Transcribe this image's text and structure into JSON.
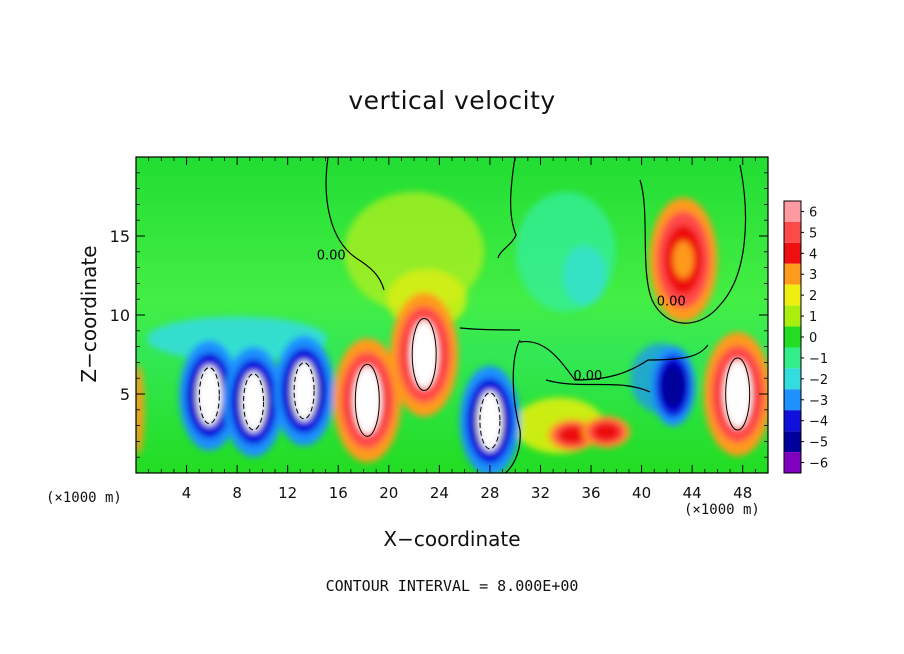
{
  "chart_data": {
    "type": "heatmap",
    "title": "vertical velocity",
    "xlabel": "X−coordinate",
    "ylabel": "Z−coordinate",
    "x_unit": "(×1000 m)",
    "x_unit_right": "(×1000 m)",
    "xlim": [
      0,
      50
    ],
    "ylim": [
      0,
      20
    ],
    "x_ticks": [
      4,
      8,
      12,
      16,
      20,
      24,
      28,
      32,
      36,
      40,
      44,
      48
    ],
    "y_ticks": [
      5,
      10,
      15
    ],
    "colorbar": {
      "levels": [
        6,
        5,
        4,
        3,
        2,
        1,
        0,
        -1,
        -2,
        -3,
        -4,
        -5,
        -6
      ],
      "colors": [
        "#ff9aa0",
        "#ff4a4a",
        "#ee1010",
        "#ff9a1a",
        "#eeee10",
        "#aaee10",
        "#22dd22",
        "#33ee88",
        "#33dddd",
        "#1e90ff",
        "#1010dd",
        "#00009a",
        "#8000c0"
      ]
    },
    "contour_labels": [
      {
        "text": "0.00",
        "x": 14.3,
        "y": 13.5
      },
      {
        "text": "0.00",
        "x": 34.6,
        "y": 5.9
      },
      {
        "text": "0.00",
        "x": 41.2,
        "y": 10.6
      }
    ],
    "features": [
      {
        "kind": "downdraft",
        "x": 5.8,
        "z": 4.9,
        "level": -6
      },
      {
        "kind": "downdraft",
        "x": 9.3,
        "z": 4.5,
        "level": -6
      },
      {
        "kind": "downdraft",
        "x": 13.3,
        "z": 5.2,
        "level": -6
      },
      {
        "kind": "updraft",
        "x": 18.3,
        "z": 4.6,
        "level": 6
      },
      {
        "kind": "updraft",
        "x": 22.8,
        "z": 7.5,
        "level": 6
      },
      {
        "kind": "downdraft",
        "x": 28.0,
        "z": 3.3,
        "level": -6
      },
      {
        "kind": "updraft",
        "x": 34.5,
        "z": 2.4,
        "level": 4
      },
      {
        "kind": "updraft",
        "x": 37.2,
        "z": 2.6,
        "level": 4
      },
      {
        "kind": "downdraft",
        "x": 42.5,
        "z": 5.5,
        "level": -5
      },
      {
        "kind": "updraft",
        "x": 47.6,
        "z": 5.0,
        "level": 6
      },
      {
        "kind": "updraft",
        "x": 43.3,
        "z": 13.5,
        "level": 3
      }
    ],
    "footer": "CONTOUR INTERVAL = 8.000E+00"
  }
}
